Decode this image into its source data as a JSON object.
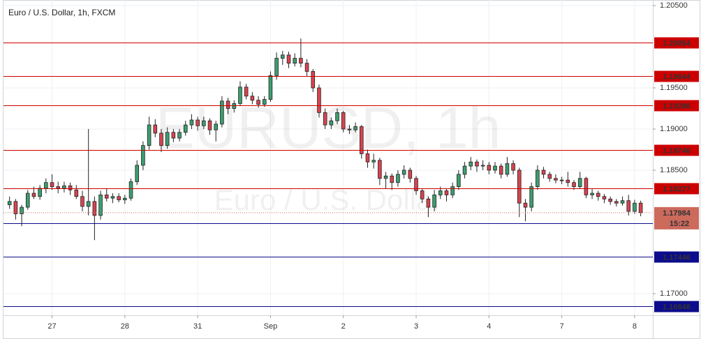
{
  "chart_data": {
    "type": "candlestick",
    "title": "Euro / U.S. Dollar, 1h, FXCM",
    "watermark_symbol": "EURUSD, 1h",
    "watermark_name": "Euro / U.S. Dollar",
    "up_color": "#3c9e6f",
    "down_color": "#d9434f",
    "xlim": [
      0,
      107
    ],
    "ylim": [
      1.16737,
      1.20568
    ],
    "xticks": [
      {
        "value": 8,
        "label": "27"
      },
      {
        "value": 20,
        "label": "28"
      },
      {
        "value": 32,
        "label": "31"
      },
      {
        "value": 44,
        "label": "Sep"
      },
      {
        "value": 56,
        "label": "2"
      },
      {
        "value": 68,
        "label": "3"
      },
      {
        "value": 80,
        "label": "4"
      },
      {
        "value": 92,
        "label": "7"
      },
      {
        "value": 104,
        "label": "8"
      }
    ],
    "yticks": [
      {
        "value": 1.205,
        "label": "1.20500"
      },
      {
        "value": 1.195,
        "label": "1.19500"
      },
      {
        "value": 1.19,
        "label": "1.19000"
      },
      {
        "value": 1.185,
        "label": "1.18500"
      },
      {
        "value": 1.17,
        "label": "1.17000"
      }
    ],
    "grid": true,
    "levels": [
      {
        "value": 1.20054,
        "color": "#cc0000"
      },
      {
        "value": 1.19644,
        "color": "#cc0000"
      },
      {
        "value": 1.19286,
        "color": "#cc0000"
      },
      {
        "value": 1.18746,
        "color": "#cc0000"
      },
      {
        "value": 1.18277,
        "color": "#cc0000"
      },
      {
        "value": 1.17855,
        "color": "#0c0c8c"
      },
      {
        "value": 1.17446,
        "color": "#0c0c8c"
      },
      {
        "value": 1.16848,
        "color": "#0c0c8c"
      }
    ],
    "last_price": 1.17984,
    "last_price_color": "#cc6a5c",
    "countdown": "15:22",
    "x": [
      1,
      2,
      3,
      4,
      5,
      6,
      7,
      8,
      9,
      10,
      11,
      12,
      13,
      14,
      15,
      16,
      17,
      18,
      19,
      20,
      21,
      22,
      23,
      24,
      25,
      26,
      27,
      28,
      29,
      30,
      31,
      32,
      33,
      34,
      35,
      36,
      37,
      38,
      39,
      40,
      41,
      42,
      43,
      44,
      45,
      46,
      47,
      48,
      49,
      50,
      51,
      52,
      53,
      54,
      55,
      56,
      57,
      58,
      59,
      60,
      61,
      62,
      63,
      64,
      65,
      66,
      67,
      68,
      69,
      70,
      71,
      72,
      73,
      74,
      75,
      76,
      77,
      78,
      79,
      80,
      81,
      82,
      83,
      84,
      85,
      86,
      87,
      88,
      89,
      90,
      91,
      92,
      93,
      94,
      95,
      96,
      97,
      98,
      99,
      100,
      101,
      102,
      103,
      104,
      105
    ],
    "open": [
      1.1808,
      1.1812,
      1.1797,
      1.1805,
      1.1822,
      1.1818,
      1.1828,
      1.1835,
      1.183,
      1.1828,
      1.1831,
      1.1826,
      1.1818,
      1.1806,
      1.1812,
      1.1795,
      1.182,
      1.1816,
      1.1818,
      1.1814,
      1.1816,
      1.1836,
      1.1856,
      1.188,
      1.1905,
      1.1895,
      1.188,
      1.1896,
      1.1889,
      1.1896,
      1.1905,
      1.1911,
      1.1904,
      1.191,
      1.1899,
      1.1906,
      1.1934,
      1.1925,
      1.1931,
      1.1951,
      1.194,
      1.1935,
      1.193,
      1.1936,
      1.1965,
      1.1986,
      1.199,
      1.198,
      1.1986,
      1.198,
      1.197,
      1.195,
      1.192,
      1.1905,
      1.191,
      1.192,
      1.19,
      1.1899,
      1.1903,
      1.187,
      1.186,
      1.1862,
      1.184,
      1.1843,
      1.1835,
      1.1845,
      1.185,
      1.184,
      1.1825,
      1.1815,
      1.1805,
      1.182,
      1.1825,
      1.182,
      1.183,
      1.1845,
      1.1855,
      1.186,
      1.1855,
      1.1856,
      1.185,
      1.1855,
      1.1845,
      1.1858,
      1.185,
      1.181,
      1.1805,
      1.183,
      1.185,
      1.1845,
      1.184,
      1.1838,
      1.1838,
      1.1835,
      1.183,
      1.184,
      1.182,
      1.1822,
      1.1818,
      1.1815,
      1.1812,
      1.181,
      1.1813,
      1.18,
      1.181
    ],
    "high": [
      1.1818,
      1.1815,
      1.1808,
      1.1826,
      1.183,
      1.1832,
      1.184,
      1.1845,
      1.1836,
      1.1836,
      1.1835,
      1.1832,
      1.1825,
      1.19,
      1.1818,
      1.1825,
      1.1828,
      1.1822,
      1.1822,
      1.182,
      1.184,
      1.1862,
      1.1885,
      1.1915,
      1.1912,
      1.19,
      1.1902,
      1.19,
      1.19,
      1.191,
      1.1918,
      1.1915,
      1.1915,
      1.1913,
      1.191,
      1.194,
      1.1938,
      1.1935,
      1.1958,
      1.1955,
      1.1945,
      1.194,
      1.194,
      1.197,
      1.1993,
      1.1995,
      1.1994,
      1.1992,
      1.201,
      1.1985,
      1.1973,
      1.1954,
      1.1925,
      1.1914,
      1.1925,
      1.1922,
      1.1905,
      1.1908,
      1.1905,
      1.1875,
      1.187,
      1.1865,
      1.1848,
      1.1846,
      1.185,
      1.1856,
      1.1853,
      1.1843,
      1.1828,
      1.1818,
      1.1826,
      1.183,
      1.1828,
      1.1835,
      1.185,
      1.186,
      1.1866,
      1.1863,
      1.1862,
      1.186,
      1.186,
      1.1858,
      1.1866,
      1.1862,
      1.1853,
      1.1815,
      1.1835,
      1.1856,
      1.1854,
      1.1848,
      1.1845,
      1.1842,
      1.1848,
      1.1838,
      1.1848,
      1.1842,
      1.1828,
      1.1825,
      1.1821,
      1.1818,
      1.1815,
      1.1818,
      1.182,
      1.1814,
      1.1813
    ],
    "low": [
      1.1803,
      1.179,
      1.1782,
      1.1802,
      1.1815,
      1.1814,
      1.1822,
      1.1826,
      1.1822,
      1.1823,
      1.182,
      1.1815,
      1.18,
      1.1795,
      1.1765,
      1.179,
      1.1812,
      1.181,
      1.1811,
      1.1809,
      1.1813,
      1.1832,
      1.185,
      1.1875,
      1.189,
      1.1872,
      1.1876,
      1.1884,
      1.1885,
      1.1892,
      1.19,
      1.1898,
      1.19,
      1.1893,
      1.1885,
      1.1902,
      1.1918,
      1.192,
      1.1928,
      1.1936,
      1.193,
      1.1926,
      1.1927,
      1.1933,
      1.196,
      1.1978,
      1.1974,
      1.1976,
      1.1975,
      1.1964,
      1.1945,
      1.1914,
      1.19,
      1.19,
      1.1906,
      1.1896,
      1.1894,
      1.1896,
      1.1864,
      1.1853,
      1.1852,
      1.1832,
      1.1828,
      1.1826,
      1.183,
      1.184,
      1.1835,
      1.182,
      1.181,
      1.1793,
      1.18,
      1.1815,
      1.1812,
      1.1816,
      1.1826,
      1.184,
      1.185,
      1.1848,
      1.185,
      1.1845,
      1.1846,
      1.184,
      1.1842,
      1.1845,
      1.1793,
      1.1788,
      1.18,
      1.1826,
      1.184,
      1.1836,
      1.1834,
      1.1833,
      1.183,
      1.1826,
      1.1828,
      1.1816,
      1.1815,
      1.1813,
      1.181,
      1.1808,
      1.1806,
      1.1807,
      1.1795,
      1.1797,
      1.1794
    ],
    "close": [
      1.1812,
      1.1797,
      1.1805,
      1.1822,
      1.1818,
      1.1828,
      1.1835,
      1.183,
      1.1828,
      1.1831,
      1.1826,
      1.1818,
      1.1806,
      1.1812,
      1.1795,
      1.182,
      1.1816,
      1.1818,
      1.1814,
      1.1816,
      1.1836,
      1.1856,
      1.188,
      1.1905,
      1.1895,
      1.188,
      1.1896,
      1.1889,
      1.1896,
      1.1905,
      1.1911,
      1.1904,
      1.191,
      1.1899,
      1.1906,
      1.1934,
      1.1925,
      1.1931,
      1.1951,
      1.194,
      1.1935,
      1.193,
      1.1936,
      1.1965,
      1.1986,
      1.199,
      1.198,
      1.1986,
      1.198,
      1.197,
      1.195,
      1.192,
      1.1905,
      1.191,
      1.192,
      1.19,
      1.1899,
      1.1903,
      1.187,
      1.186,
      1.1862,
      1.184,
      1.1843,
      1.1835,
      1.1845,
      1.185,
      1.184,
      1.1825,
      1.1815,
      1.1805,
      1.182,
      1.1825,
      1.182,
      1.183,
      1.1845,
      1.1855,
      1.186,
      1.1855,
      1.1856,
      1.185,
      1.1855,
      1.1845,
      1.1858,
      1.185,
      1.181,
      1.1805,
      1.183,
      1.185,
      1.1845,
      1.184,
      1.1838,
      1.1838,
      1.1835,
      1.183,
      1.184,
      1.182,
      1.1822,
      1.1818,
      1.1815,
      1.1812,
      1.181,
      1.1813,
      1.18,
      1.181,
      1.17984
    ]
  }
}
